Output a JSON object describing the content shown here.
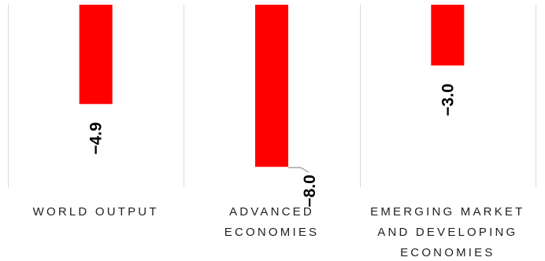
{
  "chart_data": {
    "type": "bar",
    "categories": [
      [
        "WORLD OUTPUT"
      ],
      [
        "ADVANCED",
        "ECONOMIES"
      ],
      [
        "EMERGING MARKET",
        "AND DEVELOPING",
        "ECONOMIES"
      ]
    ],
    "values": [
      -4.9,
      -8.0,
      -3.0
    ],
    "data_labels": [
      "−4.9",
      "−8.0",
      "−3.0"
    ],
    "ylim": [
      -9.0,
      0
    ],
    "bar_color": "#ff0000",
    "grid": "vertical separators between categories",
    "legend": "none",
    "title": "",
    "xlabel": "",
    "ylabel": ""
  }
}
